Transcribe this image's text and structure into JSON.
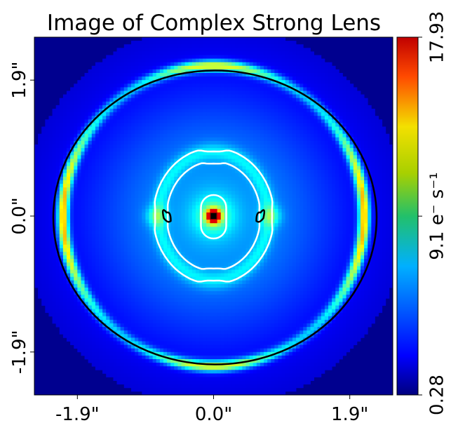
{
  "chart_data": {
    "type": "heatmap",
    "title": "Image of Complex Strong Lens",
    "xlabel": "",
    "ylabel": "",
    "x_ticks": [
      "-1.9\"",
      "0.0\"",
      "1.9\""
    ],
    "y_ticks": [
      "1.9\"",
      "0.0\"",
      "-1.9\""
    ],
    "tick_values": [
      -1.9,
      0.0,
      1.9
    ],
    "extent": [
      -2.5,
      2.5
    ],
    "colormap": "jet",
    "colorbar": {
      "ticks": [
        "17.93",
        "9.1 e$^{-}$ s$^{-1}$",
        "0.28"
      ],
      "tick_values": [
        17.93,
        9.1,
        0.28
      ],
      "unit_label": "9.1 e⁻ s⁻¹",
      "min": 0.28,
      "max": 17.93
    },
    "features": {
      "lens_center_peak": 17.93,
      "einstein_ring_radius_arcsec": 2.05,
      "critical_curve_color": "#000000",
      "caustic_color": "#ffffff"
    }
  }
}
